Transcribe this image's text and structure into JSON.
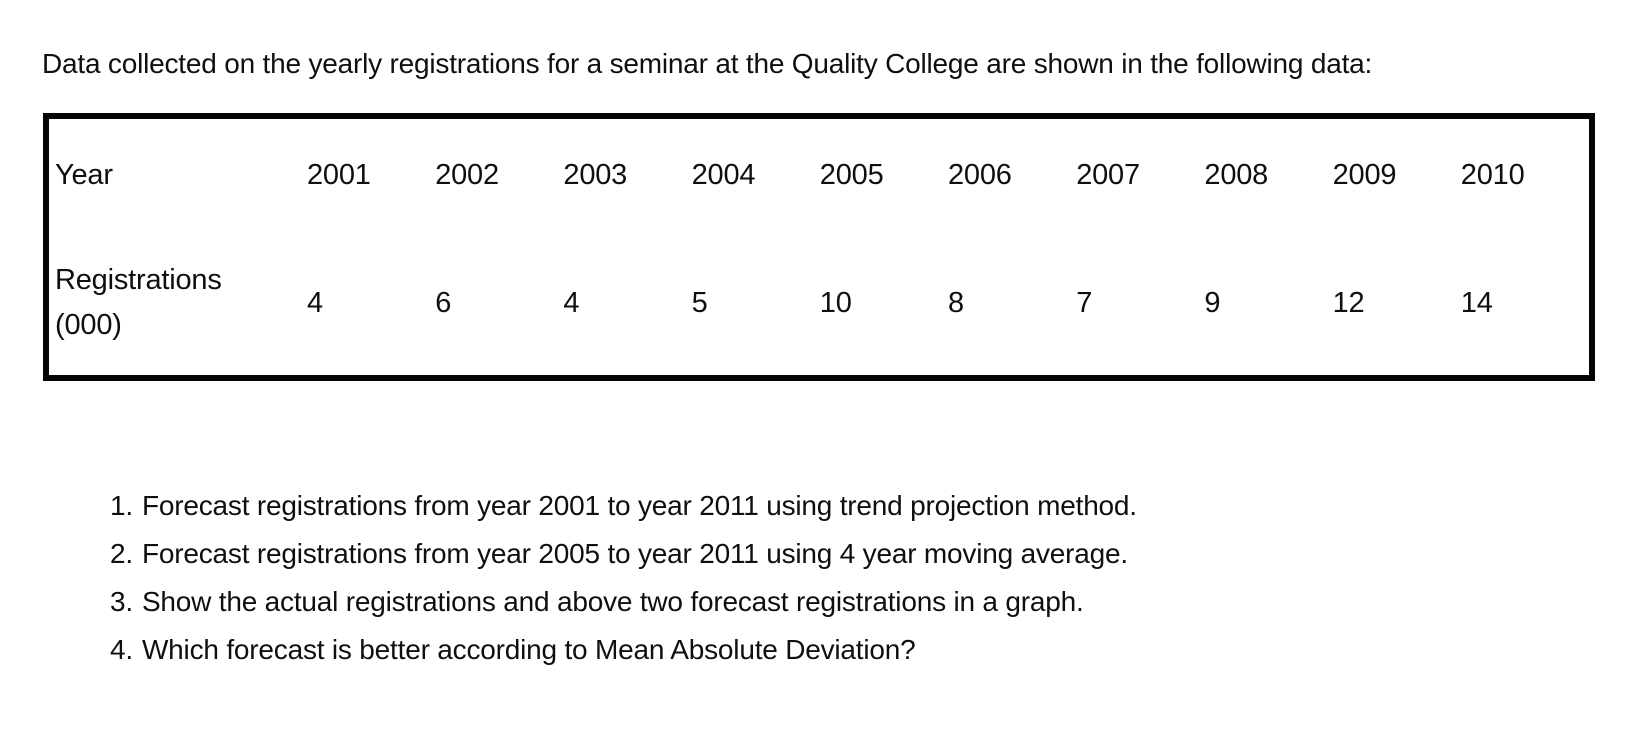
{
  "page": {
    "intro": "Data collected on the yearly registrations for a seminar at the Quality College are shown in the following data:"
  },
  "table": {
    "year_label": "Year",
    "registrations_label_line1": "Registrations",
    "registrations_label_line2": "(000)",
    "years": [
      "2001",
      "2002",
      "2003",
      "2004",
      "2005",
      "2006",
      "2007",
      "2008",
      "2009",
      "2010"
    ],
    "registrations": [
      "4",
      "6",
      "4",
      "5",
      "10",
      "8",
      "7",
      "9",
      "12",
      "14"
    ]
  },
  "questions": [
    {
      "marker": "1.",
      "text": "Forecast registrations from year 2001 to year 2011 using trend projection method."
    },
    {
      "marker": "2.",
      "text": "Forecast registrations from year 2005 to year 2011 using 4 year moving average."
    },
    {
      "marker": "3.",
      "text": "Show the actual registrations and above two forecast registrations in a graph."
    },
    {
      "marker": "4.",
      "text": "Which forecast is better according to Mean Absolute Deviation?"
    }
  ],
  "colors": {
    "background": "#ffffff",
    "text": "#0f0f0f",
    "table_border": "#050505"
  },
  "chart_data": {
    "type": "table",
    "categories": [
      2001,
      2002,
      2003,
      2004,
      2005,
      2006,
      2007,
      2008,
      2009,
      2010
    ],
    "series": [
      {
        "name": "Registrations (000)",
        "values": [
          4,
          6,
          4,
          5,
          10,
          8,
          7,
          9,
          12,
          14
        ]
      }
    ]
  }
}
